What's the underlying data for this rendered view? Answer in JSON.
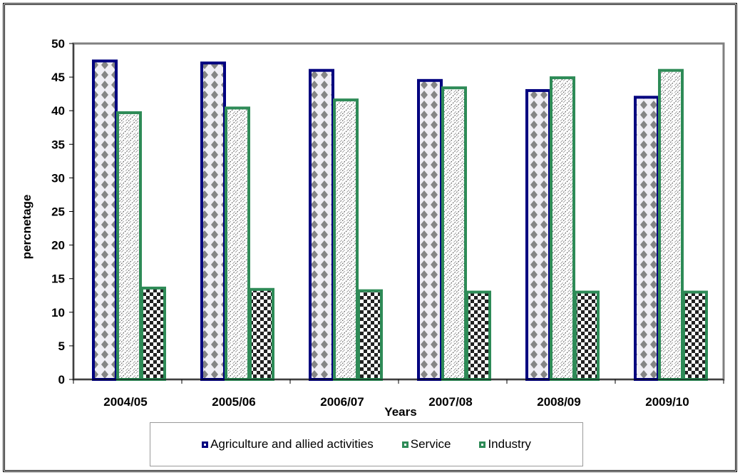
{
  "chart_data": {
    "type": "bar",
    "title": "",
    "xlabel": "Years",
    "ylabel": "percnetage",
    "ylim": [
      0,
      50
    ],
    "yticks": [
      0,
      5,
      10,
      15,
      20,
      25,
      30,
      35,
      40,
      45,
      50
    ],
    "categories": [
      "2004/05",
      "2005/06",
      "2006/07",
      "2007/08",
      "2008/09",
      "2009/10"
    ],
    "series": [
      {
        "name": "Agriculture and allied activities",
        "values": [
          47.4,
          47.1,
          46.0,
          44.5,
          43.0,
          42.0
        ],
        "border_color": "#00007f",
        "pattern": "diamonds"
      },
      {
        "name": "Service",
        "values": [
          39.7,
          40.4,
          41.6,
          43.4,
          44.9,
          46.0
        ],
        "border_color": "#2e8b57",
        "pattern": "diagonal-hatch"
      },
      {
        "name": "Industry",
        "values": [
          13.6,
          13.4,
          13.2,
          13.0,
          13.0,
          13.0
        ],
        "border_color": "#2e8b57",
        "pattern": "checkerboard"
      }
    ],
    "grid": false,
    "legend_position": "bottom"
  }
}
